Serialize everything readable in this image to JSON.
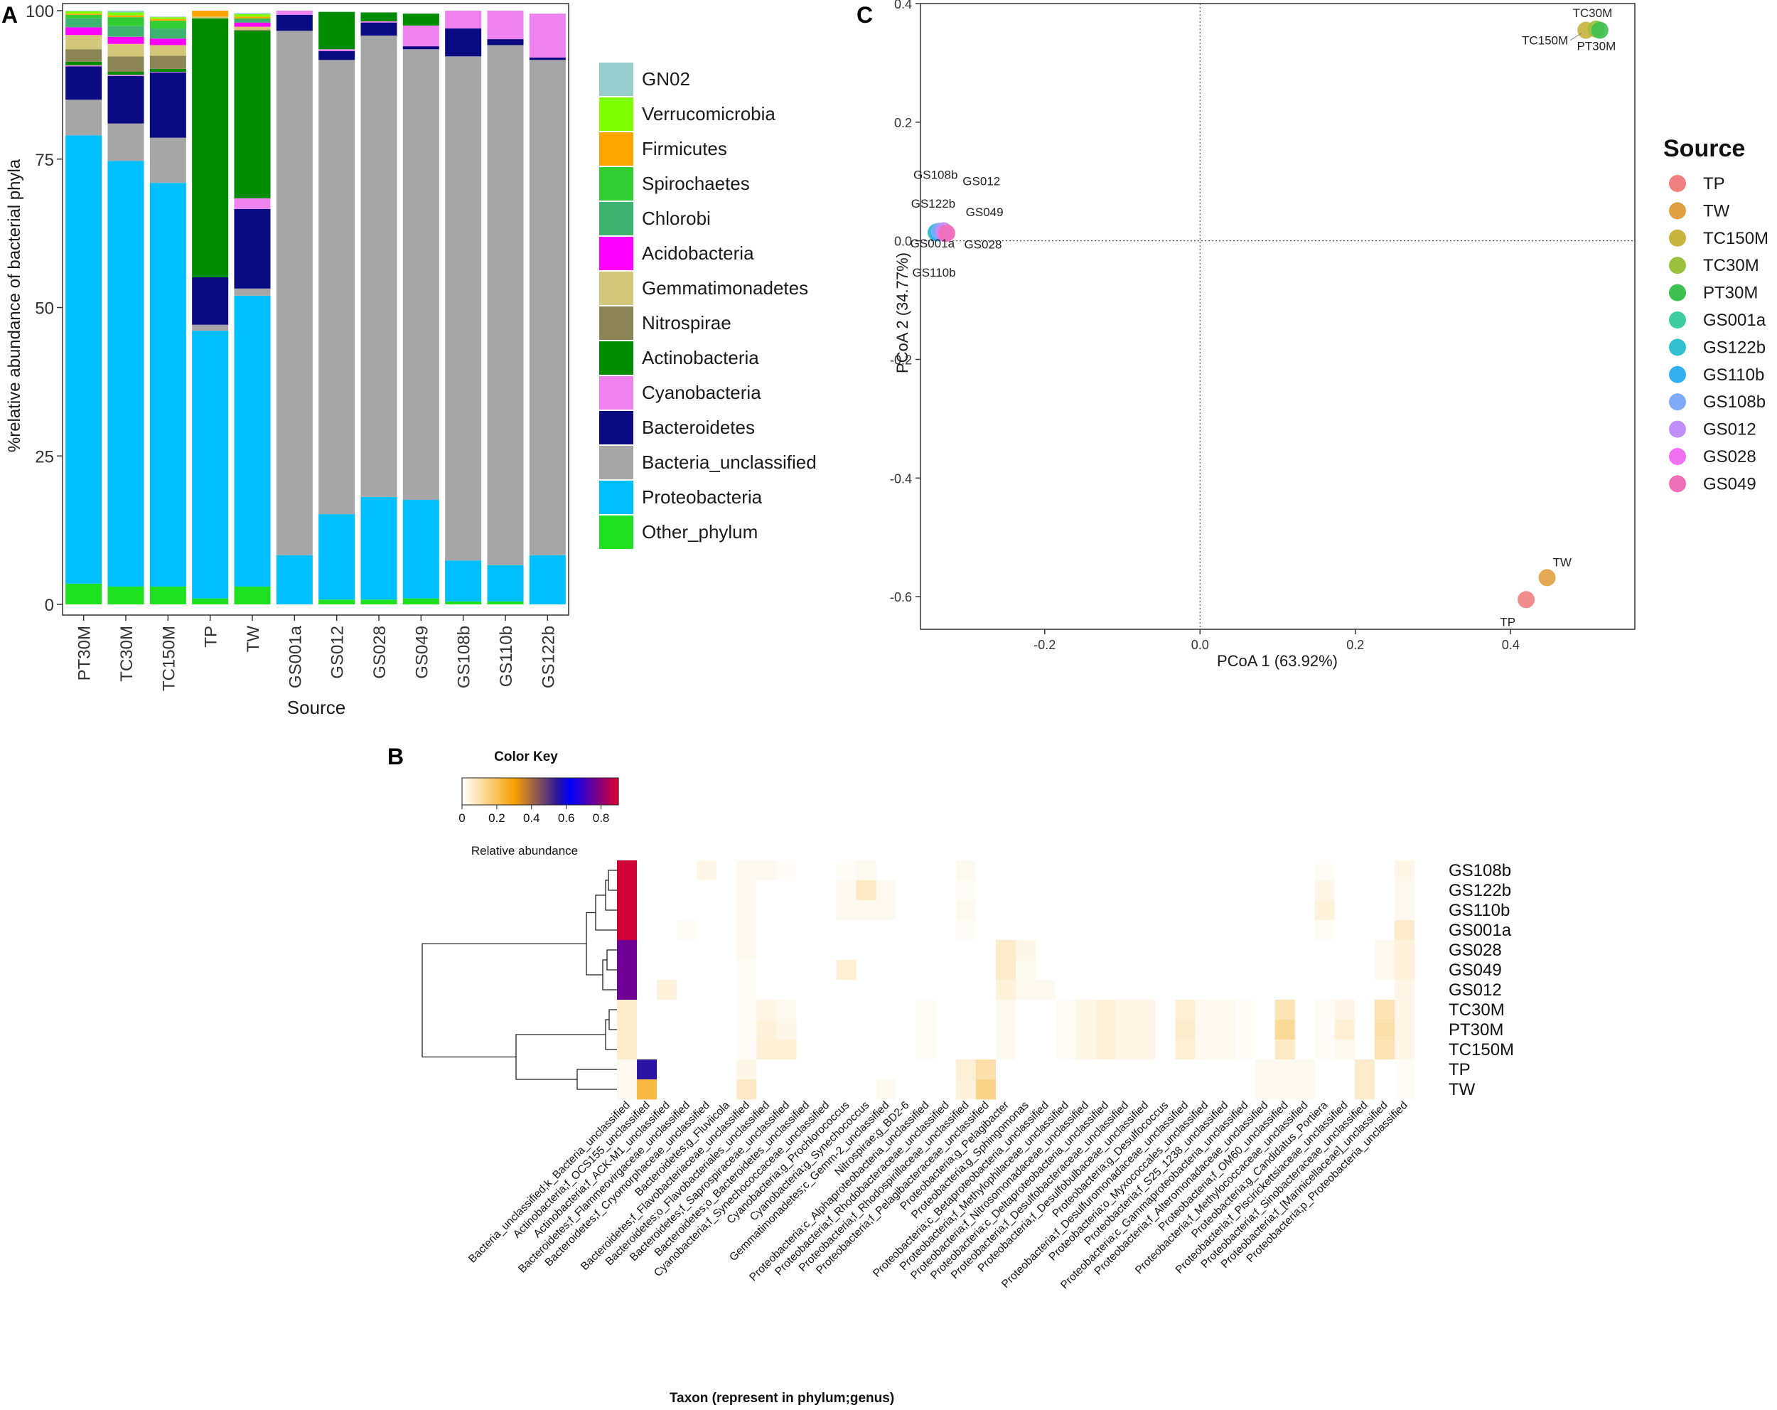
{
  "panels": {
    "a": "A",
    "b": "B",
    "c": "C"
  },
  "chart_data": [
    {
      "type": "bar",
      "stacked": true,
      "panel": "A",
      "xlabel": "Source",
      "ylabel": "%relative abundance of bacterial phyla",
      "ylim": [
        0,
        100
      ],
      "yticks": [
        "0",
        "25",
        "50",
        "75",
        "100"
      ],
      "categories": [
        "PT30M",
        "TC30M",
        "TC150M",
        "TP",
        "TW",
        "GS001a",
        "GS012",
        "GS028",
        "GS049",
        "GS108b",
        "GS110b",
        "GS122b"
      ],
      "series": [
        {
          "name": "Other_phylum",
          "color": "#1fe01f",
          "values": [
            3.5,
            3,
            3,
            1,
            3,
            0,
            0.8,
            0.8,
            1,
            0.5,
            0.5,
            0
          ]
        },
        {
          "name": "Proteobacteria",
          "color": "#00bfff",
          "values": [
            75.5,
            71.7,
            68,
            45.1,
            49,
            8.3,
            14.4,
            17.3,
            16.6,
            6.9,
            6.1,
            8.3
          ]
        },
        {
          "name": "Bacteria_unclassified",
          "color": "#a6a6a6",
          "values": [
            6,
            6.3,
            7.6,
            1,
            1.2,
            88.3,
            76.5,
            77.7,
            75.9,
            84.9,
            87.6,
            83.4
          ]
        },
        {
          "name": "Bacteroidetes",
          "color": "#0a0a82",
          "values": [
            5.6,
            8,
            11,
            8,
            13.4,
            2.7,
            1.5,
            2.2,
            0.5,
            4.7,
            1,
            0.4
          ]
        },
        {
          "name": "Cyanobacteria",
          "color": "#ee82ee",
          "values": [
            0.2,
            0.2,
            0.1,
            0,
            1.8,
            0.7,
            0.3,
            0.2,
            3.5,
            3,
            4.8,
            7.4
          ]
        },
        {
          "name": "Actinobacteria",
          "color": "#008c00",
          "values": [
            0.6,
            0.5,
            0.5,
            43.6,
            28.2,
            0,
            6.3,
            1.5,
            2,
            0,
            0,
            0
          ]
        },
        {
          "name": "Nitrospirae",
          "color": "#8b8455",
          "values": [
            2.1,
            2.6,
            2.2,
            0,
            0.2,
            0,
            0,
            0,
            0,
            0,
            0,
            0
          ]
        },
        {
          "name": "Gemmatimonadetes",
          "color": "#d3c779",
          "values": [
            2.4,
            2.1,
            1.8,
            0.3,
            0.5,
            0,
            0,
            0,
            0,
            0,
            0,
            0
          ]
        },
        {
          "name": "Acidobacteria",
          "color": "#ff00ff",
          "values": [
            1.3,
            1.2,
            1.1,
            0,
            0.7,
            0,
            0,
            0,
            0,
            0,
            0,
            0
          ]
        },
        {
          "name": "Chlorobi",
          "color": "#3cb371",
          "values": [
            1.5,
            1.8,
            1.7,
            0,
            0.5,
            0,
            0,
            0,
            0,
            0,
            0,
            0
          ]
        },
        {
          "name": "Spirochaetes",
          "color": "#32cd32",
          "values": [
            0.6,
            1.5,
            1.3,
            0,
            0.2,
            0,
            0,
            0,
            0,
            0,
            0,
            0
          ]
        },
        {
          "name": "Firmicutes",
          "color": "#ffa500",
          "values": [
            0.2,
            0.3,
            0.3,
            1,
            0.3,
            0,
            0,
            0,
            0,
            0,
            0,
            0
          ]
        },
        {
          "name": "Verrucomicrobia",
          "color": "#7fff00",
          "values": [
            0.4,
            0.5,
            0.3,
            0,
            0.4,
            0,
            0,
            0,
            0,
            0,
            0,
            0
          ]
        },
        {
          "name": "GN02",
          "color": "#96cdcd",
          "values": [
            0.1,
            0.3,
            0.1,
            0,
            0.2,
            0,
            0,
            0,
            0,
            0,
            0,
            0
          ]
        }
      ],
      "legend_order": [
        "GN02",
        "Verrucomicrobia",
        "Firmicutes",
        "Spirochaetes",
        "Chlorobi",
        "Acidobacteria",
        "Gemmatimonadetes",
        "Nitrospirae",
        "Actinobacteria",
        "Cyanobacteria",
        "Bacteroidetes",
        "Bacteria_unclassified",
        "Proteobacteria",
        "Other_phylum"
      ]
    },
    {
      "type": "scatter",
      "panel": "C",
      "xlabel": "PCoA 1 (63.92%)",
      "ylabel": "PCoA 2 (34.77%)",
      "xlim": [
        -0.36,
        0.56
      ],
      "ylim": [
        -0.655,
        0.4
      ],
      "xticks": [
        -0.2,
        0.0,
        0.2,
        0.4
      ],
      "yticks": [
        -0.6,
        -0.4,
        -0.2,
        0.0,
        0.2,
        0.4
      ],
      "xtick_labels": [
        "-0.2",
        "0.0",
        "0.2",
        "0.4"
      ],
      "ytick_labels": [
        "-0.6",
        "-0.4",
        "-0.2",
        "0.0",
        "0.2",
        "0.4"
      ],
      "legend_title": "Source",
      "points": [
        {
          "name": "TP",
          "x": 0.42,
          "y": -0.605,
          "color": "#f08080",
          "label": "TP"
        },
        {
          "name": "TW",
          "x": 0.447,
          "y": -0.568,
          "color": "#e0a040",
          "label": "TW"
        },
        {
          "name": "TC150M",
          "x": 0.497,
          "y": 0.355,
          "color": "#c8b43c",
          "label": "TC150M"
        },
        {
          "name": "TC30M",
          "x": 0.51,
          "y": 0.357,
          "color": "#9ac03c",
          "label": "TC30M"
        },
        {
          "name": "PT30M",
          "x": 0.515,
          "y": 0.355,
          "color": "#3cc050",
          "label": "PT30M"
        },
        {
          "name": "GS001a",
          "x": -0.34,
          "y": 0.014,
          "color": "#3ccca0",
          "label": "GS001a"
        },
        {
          "name": "GS122b",
          "x": -0.339,
          "y": 0.015,
          "color": "#30c0d0",
          "label": "GS122b"
        },
        {
          "name": "GS110b",
          "x": -0.338,
          "y": 0.013,
          "color": "#30b0f0",
          "label": "GS110b"
        },
        {
          "name": "GS108b",
          "x": -0.336,
          "y": 0.016,
          "color": "#80a8f8",
          "label": "GS108b"
        },
        {
          "name": "GS012",
          "x": -0.33,
          "y": 0.017,
          "color": "#c090f8",
          "label": "GS012"
        },
        {
          "name": "GS028",
          "x": -0.328,
          "y": 0.012,
          "color": "#f070f0",
          "label": "GS028"
        },
        {
          "name": "GS049",
          "x": -0.326,
          "y": 0.013,
          "color": "#f070b8",
          "label": "GS049"
        }
      ]
    },
    {
      "type": "heatmap",
      "panel": "B",
      "color_key_title": "Color Key",
      "color_key_label": "Relative abundance",
      "color_key_ticks": [
        "0",
        "0.2",
        "0.4",
        "0.6",
        "0.8"
      ],
      "color_key_tick_values": [
        0,
        0.2,
        0.4,
        0.6,
        0.8
      ],
      "color_key_max": 0.9,
      "xlabel": "Taxon (represent in phylum;genus)",
      "rows": [
        "GS108b",
        "GS122b",
        "GS110b",
        "GS001a",
        "GS028",
        "GS049",
        "GS012",
        "TC30M",
        "PT30M",
        "TC150M",
        "TP",
        "TW"
      ],
      "columns": [
        "Bacteria_unclassified;k_Bacteria_unclassified",
        "Actinobacteria;f_OCS155_unclassified",
        "Actinobacteria;f_ACK-M1_unclassified",
        "Bacteroidetes;f_Flammeovirgaceae_unclassified",
        "Bacteroidetes;f_Cryomorphaceae_unclassified",
        "Bacteroidetes;g_Fluviicola",
        "Bacteroidetes;f_Flavobacteriaceae_unclassified",
        "Bacteroidetes;o_Flavobacteriales_unclassified",
        "Bacteroidetes;f_Saprospiraceae_unclassified",
        "Bacteroidetes;o_Bacteroidetes_unclassified",
        "Cyanobacteria;f_Synechococcaceae_unclassified",
        "Cyanobacteria;g_Prochlorococcus",
        "Cyanobacteria;g_Synechococcus",
        "Gemmatimonadetes;c_Gemm-2_unclassified",
        "Nitrospirae;g_BD2-6",
        "Proteobacteria;c_Alphaproteobacteria_unclassified",
        "Proteobacteria;f_Rhodobacteraceae_unclassified",
        "Proteobacteria;f_Rhodospirillaceae_unclassified",
        "Proteobacteria;f_Pelagibacteraceae_unclassified",
        "Proteobacteria;g_Pelagibacter",
        "Proteobacteria;g_Sphingomonas",
        "Proteobacteria;c_Betaproteobacteria_unclassified",
        "Proteobacteria;f_Methylophilaceae_unclassified",
        "Proteobacteria;f_Nitrosomonadaceae_unclassified",
        "Proteobacteria;c_Deltaproteobacteria_unclassified",
        "Proteobacteria;f_Desulfobacteraceae_unclassified",
        "Proteobacteria;f_Desulfobulbaceae_unclassified",
        "Proteobacteria;g_Desulfococcus",
        "Proteobacteria;f_Desulfuromonadaceae_unclassified",
        "Proteobacteria;o_Myxococcales_unclassified",
        "Proteobacteria;f_S25_1238_unclassified",
        "Proteobacteria;c_Gammaproteobacteria_unclassified",
        "Proteobacteria;f_Alteromonadaceae_unclassified",
        "Proteobacteria;f_OM60_unclassified",
        "Proteobacteria;f_Methylococcaceae_unclassified",
        "Proteobacteria;g_Candidatus_Portiera",
        "Proteobacteria;f_Piscirickettsiaceae_unclassified",
        "Proteobacteria;f_Sinobacteraceae_unclassified",
        "Proteobacteria;f_[Marinicellaceae]_unclassified",
        "Proteobacteria;p_Proteobacteria_unclassified"
      ],
      "values": [
        [
          0.88,
          0.0,
          0.0,
          0.0,
          0.03,
          0.0,
          0.02,
          0.02,
          0.01,
          0.0,
          0.0,
          0.01,
          0.02,
          0.0,
          0.0,
          0.0,
          0.0,
          0.02,
          0.0,
          0.0,
          0.0,
          0.0,
          0.0,
          0.0,
          0.0,
          0.0,
          0.0,
          0.0,
          0.0,
          0.0,
          0.0,
          0.0,
          0.0,
          0.0,
          0.0,
          0.01,
          0.0,
          0.0,
          0.0,
          0.03
        ],
        [
          0.88,
          0.0,
          0.0,
          0.0,
          0.0,
          0.0,
          0.02,
          0.0,
          0.0,
          0.0,
          0.0,
          0.02,
          0.07,
          0.02,
          0.0,
          0.0,
          0.0,
          0.01,
          0.0,
          0.0,
          0.0,
          0.0,
          0.0,
          0.0,
          0.0,
          0.0,
          0.0,
          0.0,
          0.0,
          0.0,
          0.0,
          0.0,
          0.0,
          0.0,
          0.0,
          0.03,
          0.0,
          0.0,
          0.0,
          0.02
        ],
        [
          0.88,
          0.0,
          0.0,
          0.0,
          0.0,
          0.0,
          0.02,
          0.0,
          0.0,
          0.0,
          0.0,
          0.02,
          0.02,
          0.02,
          0.0,
          0.0,
          0.0,
          0.02,
          0.0,
          0.0,
          0.0,
          0.0,
          0.0,
          0.0,
          0.0,
          0.0,
          0.0,
          0.0,
          0.0,
          0.0,
          0.0,
          0.0,
          0.0,
          0.0,
          0.0,
          0.04,
          0.0,
          0.0,
          0.0,
          0.02
        ],
        [
          0.88,
          0.0,
          0.0,
          0.01,
          0.0,
          0.0,
          0.02,
          0.0,
          0.0,
          0.0,
          0.0,
          0.0,
          0.0,
          0.0,
          0.0,
          0.0,
          0.0,
          0.01,
          0.0,
          0.0,
          0.0,
          0.0,
          0.0,
          0.0,
          0.0,
          0.0,
          0.0,
          0.0,
          0.0,
          0.0,
          0.0,
          0.0,
          0.0,
          0.0,
          0.0,
          0.01,
          0.0,
          0.0,
          0.0,
          0.06
        ],
        [
          0.76,
          0.0,
          0.0,
          0.0,
          0.0,
          0.0,
          0.02,
          0.0,
          0.0,
          0.0,
          0.0,
          0.0,
          0.0,
          0.0,
          0.0,
          0.0,
          0.0,
          0.0,
          0.0,
          0.06,
          0.03,
          0.0,
          0.0,
          0.0,
          0.0,
          0.0,
          0.0,
          0.0,
          0.0,
          0.0,
          0.0,
          0.0,
          0.0,
          0.0,
          0.0,
          0.0,
          0.0,
          0.0,
          0.02,
          0.04
        ],
        [
          0.76,
          0.0,
          0.0,
          0.0,
          0.0,
          0.0,
          0.01,
          0.0,
          0.0,
          0.0,
          0.0,
          0.05,
          0.0,
          0.0,
          0.0,
          0.0,
          0.0,
          0.0,
          0.0,
          0.06,
          0.02,
          0.0,
          0.0,
          0.0,
          0.0,
          0.0,
          0.0,
          0.0,
          0.0,
          0.0,
          0.0,
          0.0,
          0.0,
          0.0,
          0.0,
          0.0,
          0.0,
          0.0,
          0.02,
          0.04
        ],
        [
          0.76,
          0.0,
          0.04,
          0.0,
          0.0,
          0.0,
          0.01,
          0.0,
          0.0,
          0.0,
          0.0,
          0.0,
          0.0,
          0.0,
          0.0,
          0.0,
          0.0,
          0.0,
          0.0,
          0.04,
          0.02,
          0.02,
          0.0,
          0.0,
          0.0,
          0.0,
          0.0,
          0.0,
          0.0,
          0.0,
          0.0,
          0.0,
          0.0,
          0.0,
          0.0,
          0.0,
          0.0,
          0.0,
          0.0,
          0.03
        ],
        [
          0.06,
          0.0,
          0.0,
          0.0,
          0.0,
          0.0,
          0.01,
          0.03,
          0.02,
          0.0,
          0.0,
          0.0,
          0.0,
          0.0,
          0.0,
          0.01,
          0.0,
          0.0,
          0.0,
          0.02,
          0.0,
          0.0,
          0.01,
          0.03,
          0.04,
          0.03,
          0.03,
          0.0,
          0.05,
          0.02,
          0.02,
          0.01,
          0.0,
          0.09,
          0.0,
          0.01,
          0.03,
          0.0,
          0.09,
          0.03
        ],
        [
          0.06,
          0.0,
          0.0,
          0.0,
          0.0,
          0.0,
          0.01,
          0.04,
          0.03,
          0.0,
          0.0,
          0.0,
          0.0,
          0.0,
          0.0,
          0.01,
          0.0,
          0.0,
          0.0,
          0.02,
          0.0,
          0.0,
          0.01,
          0.03,
          0.04,
          0.03,
          0.03,
          0.0,
          0.06,
          0.02,
          0.02,
          0.01,
          0.0,
          0.12,
          0.0,
          0.01,
          0.05,
          0.0,
          0.1,
          0.03
        ],
        [
          0.06,
          0.0,
          0.0,
          0.0,
          0.0,
          0.0,
          0.01,
          0.05,
          0.05,
          0.0,
          0.0,
          0.0,
          0.0,
          0.0,
          0.0,
          0.01,
          0.0,
          0.0,
          0.0,
          0.02,
          0.0,
          0.0,
          0.01,
          0.03,
          0.04,
          0.03,
          0.03,
          0.0,
          0.05,
          0.02,
          0.02,
          0.01,
          0.0,
          0.07,
          0.0,
          0.01,
          0.02,
          0.0,
          0.09,
          0.03
        ],
        [
          0.02,
          0.55,
          0.0,
          0.0,
          0.0,
          0.0,
          0.03,
          0.0,
          0.0,
          0.0,
          0.0,
          0.0,
          0.0,
          0.0,
          0.0,
          0.0,
          0.0,
          0.05,
          0.1,
          0.0,
          0.0,
          0.0,
          0.0,
          0.0,
          0.0,
          0.0,
          0.0,
          0.0,
          0.0,
          0.0,
          0.0,
          0.0,
          0.02,
          0.02,
          0.02,
          0.0,
          0.0,
          0.06,
          0.0,
          0.01
        ],
        [
          0.02,
          0.22,
          0.0,
          0.0,
          0.0,
          0.0,
          0.07,
          0.0,
          0.0,
          0.0,
          0.0,
          0.0,
          0.0,
          0.02,
          0.0,
          0.0,
          0.0,
          0.04,
          0.14,
          0.0,
          0.0,
          0.0,
          0.0,
          0.0,
          0.0,
          0.0,
          0.0,
          0.0,
          0.0,
          0.0,
          0.0,
          0.0,
          0.02,
          0.02,
          0.02,
          0.0,
          0.0,
          0.06,
          0.0,
          0.01
        ]
      ],
      "row_dendrogram": "hierarchical"
    }
  ]
}
